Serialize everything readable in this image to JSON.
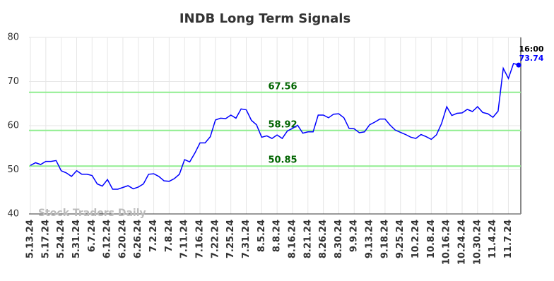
{
  "chart_data": {
    "type": "line",
    "title": "INDB Long Term Signals",
    "categories": [
      "5.13.24",
      null,
      null,
      "5.17.24",
      null,
      null,
      "5.24.24",
      null,
      null,
      "5.31.24",
      null,
      null,
      "6.7.24",
      null,
      null,
      "6.12.24",
      null,
      null,
      "6.20.24",
      null,
      null,
      "6.26.24",
      null,
      null,
      "7.2.24",
      null,
      null,
      "7.8.24",
      null,
      null,
      "7.11.24",
      null,
      null,
      "7.16.24",
      null,
      null,
      "7.22.24",
      null,
      null,
      "7.25.24",
      null,
      null,
      "7.31.24",
      null,
      null,
      "8.5.24",
      null,
      null,
      "8.8.24",
      null,
      null,
      "8.16.24",
      null,
      null,
      "8.21.24",
      null,
      null,
      "8.26.24",
      null,
      null,
      "8.30.24",
      null,
      null,
      "9.9.24",
      null,
      null,
      "9.13.24",
      null,
      null,
      "9.18.24",
      null,
      null,
      "9.25.24",
      null,
      null,
      "10.2.24",
      null,
      null,
      "10.8.24",
      null,
      null,
      "10.16.24",
      null,
      null,
      "10.24.24",
      null,
      null,
      "10.30.24",
      null,
      null,
      "11.4.24",
      null,
      null,
      "11.7.24",
      null,
      null
    ],
    "series": [
      {
        "color": "#0000ff",
        "values": [
          51.0,
          51.6,
          51.2,
          51.9,
          51.9,
          52.1,
          49.8,
          49.3,
          48.5,
          49.8,
          49.0,
          49.0,
          48.7,
          46.8,
          46.3,
          47.8,
          45.6,
          45.6,
          46.0,
          46.4,
          45.7,
          46.1,
          46.8,
          49.0,
          49.1,
          48.5,
          47.5,
          47.4,
          48.0,
          49.0,
          52.3,
          51.8,
          53.8,
          56.1,
          56.1,
          57.5,
          61.3,
          61.7,
          61.6,
          62.4,
          61.7,
          63.8,
          63.6,
          61.2,
          60.2,
          57.4,
          57.7,
          57.1,
          57.9,
          57.1,
          58.8,
          59.4,
          60.1,
          58.3,
          58.6,
          58.6,
          62.4,
          62.4,
          61.8,
          62.6,
          62.7,
          61.8,
          59.4,
          59.3,
          58.4,
          58.6,
          60.2,
          60.8,
          61.5,
          61.5,
          60.1,
          59.0,
          58.5,
          58.0,
          57.4,
          57.1,
          58.0,
          57.5,
          56.9,
          57.9,
          60.5,
          64.3,
          62.3,
          62.8,
          62.9,
          63.7,
          63.2,
          64.3,
          63.0,
          62.7,
          61.9,
          63.3,
          73.0,
          70.7,
          74.1,
          73.74
        ]
      }
    ],
    "ylim": [
      40,
      80
    ],
    "yticks": [
      40,
      50,
      60,
      70,
      80
    ],
    "grid": true,
    "hlines": [
      67.56,
      58.92,
      50.85
    ],
    "hline_color": "#90ee90",
    "hline_label_color": "#006400",
    "last_time": "16:00",
    "watermark": "Stock Traders Daily"
  }
}
